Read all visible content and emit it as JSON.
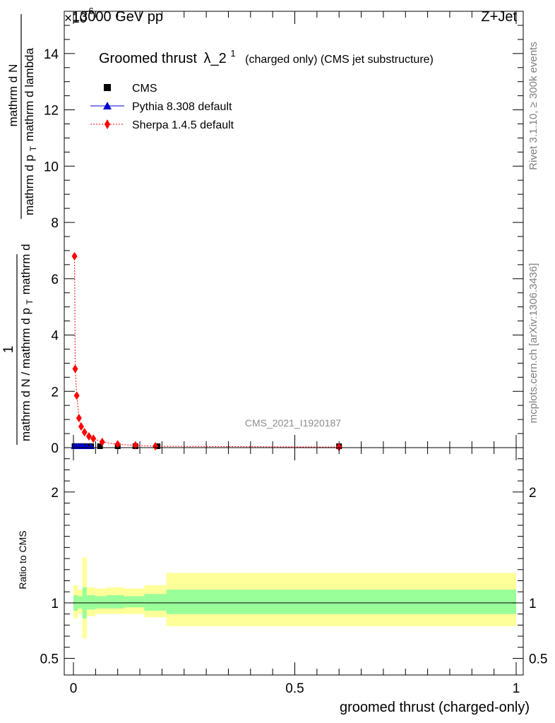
{
  "header": {
    "left": "13000 GeV pp",
    "right": "Z+Jet",
    "exponent_prefix": "×10",
    "exponent": "-6"
  },
  "side_labels": {
    "rivet": "Rivet 3.1.10, ≥ 300k events",
    "mcplots": "mcplots.cern.ch [arXiv:1306.3436]"
  },
  "watermark": "CMS_2021_I1920187",
  "chart_data": [
    {
      "type": "scatter",
      "panel": "main",
      "title_main": "Groomed thrust",
      "title_lambda": "λ_2",
      "title_super": "1",
      "title_rest": "(charged only) (CMS jet substructure)",
      "ylabel_numerator": "1",
      "ylabel_denominator": "mathrm d N / mathrm d p",
      "ylabel_sub": "T",
      "ylabel_mid": "mathrm d",
      "ylabel_deriv_num": "mathrm d",
      "ylabel_deriv_num2": "N",
      "ylabel_deriv_den": "mathrm d p",
      "ylabel_deriv_den2": "mathrm d lambda",
      "xlim": [
        0,
        1
      ],
      "ylim": [
        0,
        15.5
      ],
      "yticks": [
        0,
        2,
        4,
        6,
        8,
        10,
        12,
        14
      ],
      "ytick_labels": [
        "0",
        "2",
        "4",
        "6",
        "8",
        "10",
        "12",
        "14"
      ],
      "legend_position": "top-left",
      "series": [
        {
          "name": "CMS",
          "marker": "square",
          "color": "#000000",
          "x": [
            0.0025,
            0.0075,
            0.0125,
            0.0175,
            0.0225,
            0.03,
            0.04,
            0.06,
            0.1,
            0.14,
            0.19,
            0.6
          ],
          "y": [
            0.05,
            0.05,
            0.05,
            0.05,
            0.05,
            0.05,
            0.05,
            0.05,
            0.05,
            0.05,
            0.05,
            0.05
          ]
        },
        {
          "name": "Pythia 8.308 default",
          "marker": "triangle",
          "color": "#0000cc",
          "x": [
            0.0025,
            0.0075,
            0.0125,
            0.0175,
            0.0225,
            0.03,
            0.04
          ],
          "y": [
            0.05,
            0.05,
            0.05,
            0.05,
            0.05,
            0.05,
            0.05
          ]
        },
        {
          "name": "Sherpa 1.4.5 default",
          "marker": "diamond",
          "color": "#ff0000",
          "line": "dotted",
          "x": [
            0.0025,
            0.004,
            0.0075,
            0.0125,
            0.0175,
            0.025,
            0.035,
            0.045,
            0.065,
            0.1,
            0.14,
            0.185,
            0.6
          ],
          "y": [
            6.8,
            2.8,
            1.85,
            1.05,
            0.75,
            0.55,
            0.4,
            0.32,
            0.2,
            0.12,
            0.08,
            0.05,
            0.02
          ]
        }
      ]
    },
    {
      "type": "area",
      "panel": "ratio",
      "ylabel": "Ratio to CMS",
      "xlabel": "groomed thrust (charged-only)",
      "xlim": [
        0,
        1
      ],
      "ylim": [
        0.35,
        2.4
      ],
      "yticks": [
        0.5,
        1,
        2
      ],
      "ytick_labels": [
        "0.5",
        "1",
        "2"
      ],
      "xticks": [
        0,
        0.5,
        1
      ],
      "xtick_labels": [
        "0",
        "0.5",
        "1"
      ],
      "reference_line": 1,
      "bands": {
        "edges": [
          0,
          0.01,
          0.02,
          0.03,
          0.05,
          0.075,
          0.115,
          0.16,
          0.21,
          1
        ],
        "outer_lo": [
          0.86,
          0.9,
          0.68,
          0.88,
          0.9,
          0.9,
          0.9,
          0.87,
          0.79
        ],
        "outer_hi": [
          1.16,
          1.12,
          1.41,
          1.14,
          1.13,
          1.14,
          1.13,
          1.16,
          1.27
        ],
        "inner_lo": [
          0.93,
          0.95,
          0.86,
          0.94,
          0.95,
          0.95,
          0.96,
          0.93,
          0.9
        ],
        "inner_hi": [
          1.07,
          1.06,
          1.14,
          1.07,
          1.06,
          1.07,
          1.06,
          1.08,
          1.12
        ],
        "outer_color": "#ffff99",
        "inner_color": "#99ff99"
      }
    }
  ]
}
